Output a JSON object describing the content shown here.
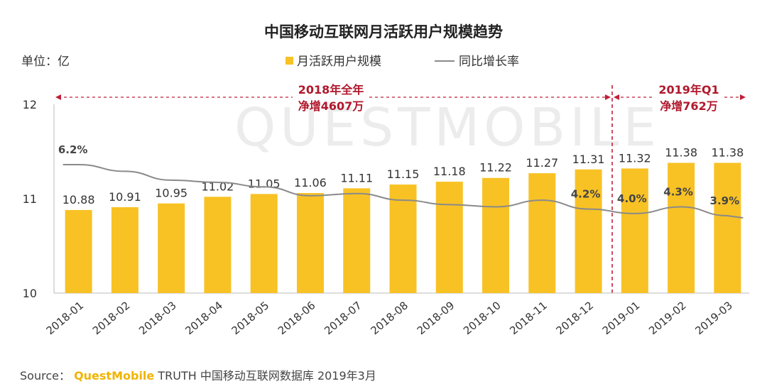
{
  "title": "中国移动互联网月活跃用户规模趋势",
  "unit_label": "单位：亿",
  "legend": {
    "bar": "月活跃用户规模",
    "line": "同比增长率"
  },
  "periods": [
    {
      "line1": "2018年全年",
      "line2": "净增4607万"
    },
    {
      "line1": "2019年Q1",
      "line2": "净增762万"
    }
  ],
  "watermark": "QUESTMOBILE",
  "source": {
    "prefix": "Source：",
    "brand": "QuestMobile",
    "rest": "TRUTH 中国移动互联网数据库 2019年3月"
  },
  "colors": {
    "bar": "#f8c225",
    "line": "#8a8a8a",
    "accent": "#c0203a"
  },
  "chart_data": {
    "type": "bar",
    "categories": [
      "2018-01",
      "2018-02",
      "2018-03",
      "2018-04",
      "2018-05",
      "2018-06",
      "2018-07",
      "2018-08",
      "2018-09",
      "2018-10",
      "2018-11",
      "2018-12",
      "2019-01",
      "2019-02",
      "2019-03"
    ],
    "series": [
      {
        "name": "月活跃用户规模",
        "type": "bar",
        "values": [
          10.88,
          10.91,
          10.95,
          11.02,
          11.05,
          11.06,
          11.11,
          11.15,
          11.18,
          11.22,
          11.27,
          11.31,
          11.32,
          11.38,
          11.38
        ]
      },
      {
        "name": "同比增长率",
        "type": "line",
        "values": [
          6.2,
          5.9,
          5.5,
          5.4,
          5.2,
          4.8,
          4.9,
          4.6,
          4.4,
          4.3,
          4.6,
          4.2,
          4.0,
          4.3,
          3.9
        ],
        "labels": [
          "6.2%",
          "",
          "",
          "",
          "",
          "",
          "",
          "",
          "",
          "",
          "",
          "4.2%",
          "4.0%",
          "4.3%",
          "3.9%"
        ]
      }
    ],
    "ylabel": "单位：亿",
    "yticks": [
      10,
      11,
      12
    ],
    "ylim": [
      10,
      12
    ],
    "grid": false,
    "legend_position": "top"
  }
}
